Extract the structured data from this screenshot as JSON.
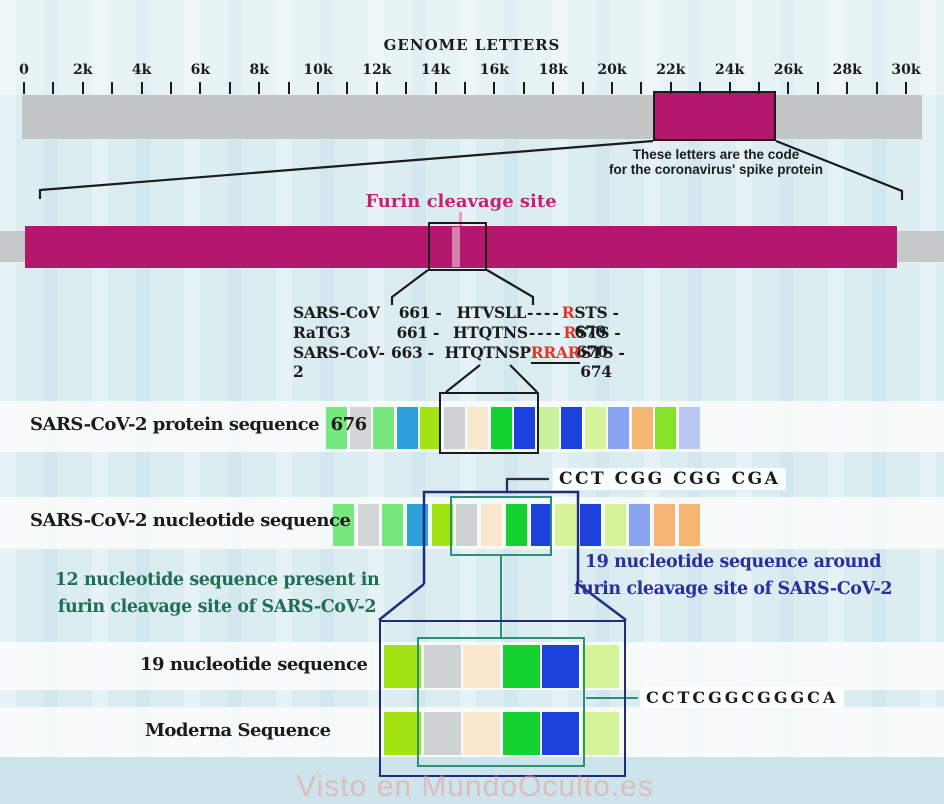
{
  "header": {
    "title": "GENOME LETTERS"
  },
  "ruler": {
    "labels": [
      "0",
      "2k",
      "4k",
      "6k",
      "8k",
      "10k",
      "12k",
      "14k",
      "16k",
      "18k",
      "20k",
      "22k",
      "24k",
      "26k",
      "28k",
      "30k"
    ],
    "tick_count": 31
  },
  "genome_bar": {
    "note_line1": "These letters are the code",
    "note_line2": "for the coronavirus' spike protein"
  },
  "spike_bar": {
    "furin_label": "Furin cleavage site"
  },
  "alignment": {
    "rows": [
      {
        "name": "SARS-CoV",
        "start": "661 -",
        "seq": "HTVSLL",
        "dots": "----",
        "highlight": "R",
        "tail": "STS - 670"
      },
      {
        "name": "RaTG3",
        "start": "661 -",
        "seq": "HTQTNS",
        "dots": "----",
        "highlight": "R",
        "tail": "STS - 670"
      },
      {
        "name": "SARS-CoV-2",
        "start": "663 -",
        "seq": "HTQTNSP",
        "dots": "",
        "highlight": "RRAR",
        "tail": "STS - 674"
      }
    ]
  },
  "protein_row": {
    "label": "SARS-CoV-2 protein sequence",
    "count": "676",
    "squares": [
      "lightGreen",
      "lightGray",
      "lightGreen",
      "skyBlue",
      "chartreuse",
      "gray",
      "peach",
      "brightGreen",
      "royalBlue",
      "paleGreen",
      "royalBlue",
      "paleChartreuse",
      "periwinkle",
      "orange",
      "chartreuse2",
      "lightPeriwinkle"
    ]
  },
  "nucleotide_row": {
    "label": "SARS-CoV-2 nucleotide sequence",
    "codon_label": "CCT CGG CGG CGA",
    "squares": [
      "lightGreen",
      "lightGray",
      "lightGreen",
      "skyBlue",
      "chartreuse",
      "gray",
      "peach",
      "brightGreen",
      "royalBlue",
      "paleChartreuse",
      "royalBlue",
      "paleChartreuse",
      "periwinkle",
      "orange",
      "orange"
    ]
  },
  "annotations": {
    "green_note_line1": "12 nucleotide sequence present in",
    "green_note_line2": "furin cleavage site of SARS-CoV-2",
    "blue_note_line1": "19 nucleotide sequence around",
    "blue_note_line2": "furin cleavage site of SARS-CoV-2"
  },
  "bottom": {
    "row1_label": "19 nucleotide sequence",
    "row2_label": "Moderna Sequence",
    "seq_label": "CCTCGGCGGGCA",
    "row1_squares": [
      "chartreuse",
      "gray",
      "peach",
      "brightGreen",
      "royalBlue",
      "paleChartreuse"
    ],
    "row2_squares": [
      "chartreuse",
      "gray",
      "peach",
      "brightGreen",
      "royalBlue",
      "paleChartreuse"
    ]
  },
  "watermark": "Visto en MundoOculto.es",
  "colors": {
    "magenta": "#b2186c",
    "navy": "#1f2e7a",
    "teal": "#2f8f74",
    "greenText": "#1f6f52",
    "blueText": "#2a2fa0",
    "red": "#e63329",
    "barGray": "#c3c6c6",
    "squares": {
      "lightGreen": "#77e87d",
      "lightGray": "#d3d6d6",
      "skyBlue": "#2d9fdb",
      "chartreuse": "#a4e414",
      "chartreuse2": "#84e22b",
      "gray": "#ced2d2",
      "peach": "#fbe7cd",
      "brightGreen": "#14d330",
      "royalBlue": "#1d41dd",
      "paleGreen": "#c9f29e",
      "paleChartreuse": "#d5f49a",
      "periwinkle": "#8ba4ef",
      "orange": "#f4b472",
      "lightPeriwinkle": "#bbc6f2"
    }
  }
}
